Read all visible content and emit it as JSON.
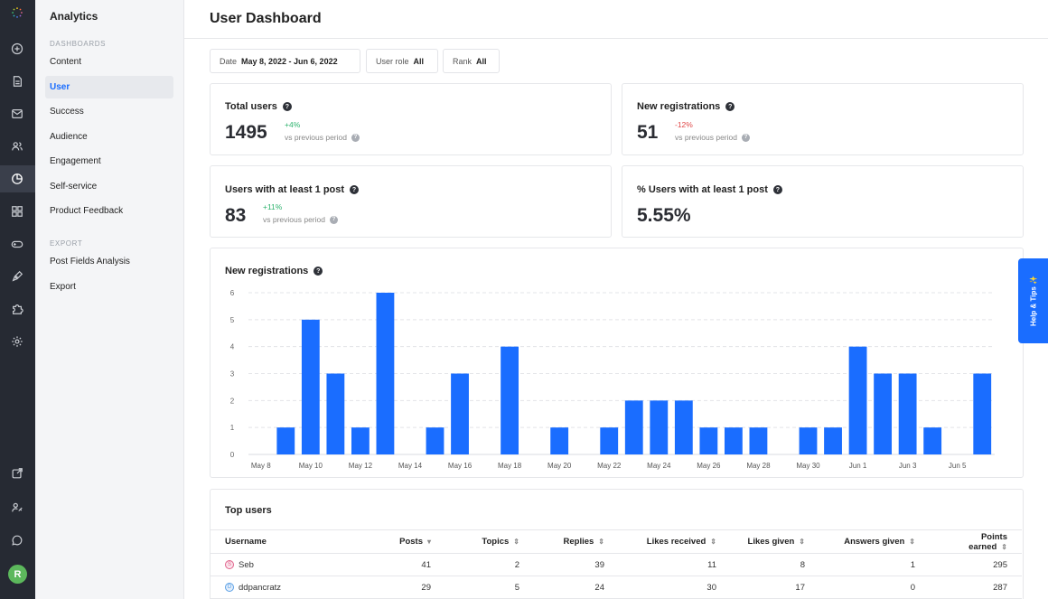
{
  "rail": {
    "avatar_letter": "R",
    "icons": [
      "brand-logo-icon",
      "add-circle-icon",
      "document-icon",
      "mail-icon",
      "users-icon",
      "analytics-icon",
      "grid-icon",
      "gamepad-icon",
      "pen-icon",
      "puzzle-icon",
      "settings-icon",
      "external-link-icon",
      "user-key-icon",
      "chat-icon"
    ]
  },
  "sidebar": {
    "title": "Analytics",
    "section_dashboards": "DASHBOARDS",
    "section_export": "EXPORT",
    "items": [
      {
        "label": "Content"
      },
      {
        "label": "User"
      },
      {
        "label": "Success"
      },
      {
        "label": "Audience"
      },
      {
        "label": "Engagement"
      },
      {
        "label": "Self-service"
      },
      {
        "label": "Product Feedback"
      }
    ],
    "export_items": [
      {
        "label": "Post Fields Analysis"
      },
      {
        "label": "Export"
      }
    ]
  },
  "header": {
    "title": "User Dashboard"
  },
  "filters": {
    "date_label": "Date",
    "date_value": "May 8, 2022 - Jun 6, 2022",
    "role_label": "User role",
    "role_value": "All",
    "rank_label": "Rank",
    "rank_value": "All"
  },
  "stats": {
    "total_users": {
      "title": "Total users",
      "value": "1495",
      "delta": "+4%",
      "vs": "vs previous period"
    },
    "new_registrations": {
      "title": "New registrations",
      "value": "51",
      "delta": "-12%",
      "vs": "vs previous period"
    },
    "users_with_post": {
      "title": "Users with at least 1 post",
      "value": "83",
      "delta": "+11%",
      "vs": "vs previous period"
    },
    "pct_users_with_post": {
      "title": "% Users with at least 1 post",
      "value": "5.55%"
    }
  },
  "chart_title": "New registrations",
  "chart_data": {
    "type": "bar",
    "title": "New registrations",
    "categories": [
      "May 8",
      "May 9",
      "May 10",
      "May 11",
      "May 12",
      "May 13",
      "May 14",
      "May 15",
      "May 16",
      "May 17",
      "May 18",
      "May 19",
      "May 20",
      "May 21",
      "May 22",
      "May 23",
      "May 24",
      "May 25",
      "May 26",
      "May 27",
      "May 28",
      "May 29",
      "May 30",
      "May 31",
      "Jun 1",
      "Jun 2",
      "Jun 3",
      "Jun 4",
      "Jun 5",
      "Jun 6"
    ],
    "values": [
      0,
      1,
      5,
      3,
      1,
      6,
      0,
      1,
      3,
      0,
      4,
      0,
      1,
      0,
      1,
      2,
      2,
      2,
      1,
      1,
      1,
      0,
      1,
      1,
      4,
      3,
      3,
      1,
      0,
      3
    ],
    "x_tick_labels": [
      "May 8",
      "May 10",
      "May 12",
      "May 14",
      "May 16",
      "May 18",
      "May 20",
      "May 22",
      "May 24",
      "May 26",
      "May 28",
      "May 30",
      "Jun 1",
      "Jun 3",
      "Jun 5"
    ],
    "y_ticks": [
      0,
      1,
      2,
      3,
      4,
      5,
      6
    ],
    "ylim": [
      0,
      6
    ],
    "color": "#1a6dff",
    "grid": true
  },
  "top_users": {
    "title": "Top users",
    "columns": [
      "Username",
      "Posts",
      "Topics",
      "Replies",
      "Likes received",
      "Likes given",
      "Answers given",
      "Points earned"
    ],
    "sort_active": "▾",
    "sort_idle": "⇕",
    "rows": [
      {
        "initial": "S",
        "username": "Seb",
        "avatar_color": "#e0628a",
        "cells": [
          "41",
          "2",
          "39",
          "11",
          "8",
          "1",
          "295"
        ]
      },
      {
        "initial": "D",
        "username": "ddpancratz",
        "avatar_color": "#5aa0e6",
        "cells": [
          "29",
          "5",
          "24",
          "30",
          "17",
          "0",
          "287"
        ]
      }
    ]
  },
  "help_tab": {
    "label": "Help & Tips ✨"
  }
}
